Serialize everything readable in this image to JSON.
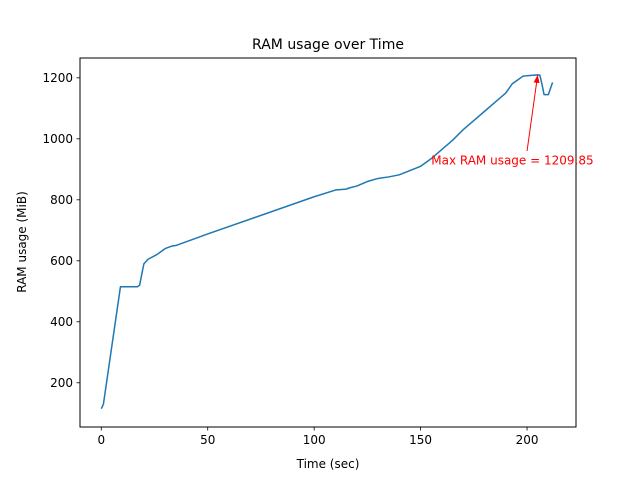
{
  "chart_data": {
    "type": "line",
    "title": "RAM usage over Time",
    "xlabel": "Time (sec)",
    "ylabel": "RAM usage (MiB)",
    "xlim": [
      -10,
      223
    ],
    "ylim": [
      55,
      1265
    ],
    "xticks": [
      0,
      50,
      100,
      150,
      200
    ],
    "yticks": [
      200,
      400,
      600,
      800,
      1000,
      1200
    ],
    "grid": false,
    "series": [
      {
        "color": "#1f77b4",
        "x": [
          0,
          1,
          9,
          12,
          17,
          18,
          20,
          22,
          26,
          30,
          33,
          35,
          50,
          100,
          110,
          115,
          117,
          120,
          125,
          130,
          135,
          140,
          150,
          155,
          160,
          165,
          170,
          175,
          180,
          185,
          190,
          193,
          195,
          198,
          200,
          202,
          205,
          206,
          207,
          208,
          209,
          210,
          212
        ],
        "y": [
          115,
          130,
          515,
          515,
          515,
          520,
          590,
          605,
          620,
          640,
          648,
          650,
          688,
          810,
          832,
          835,
          840,
          845,
          860,
          870,
          875,
          882,
          910,
          935,
          965,
          995,
          1030,
          1060,
          1090,
          1120,
          1150,
          1180,
          1190,
          1205,
          1207,
          1208,
          1209.85,
          1209,
          1180,
          1145,
          1145,
          1145,
          1185
        ]
      }
    ],
    "annotations": [
      {
        "text": "Max RAM usage = 1209.85",
        "xy": [
          205,
          1209.85
        ],
        "xytext": [
          155,
          915
        ],
        "arrow_from": [
          200,
          960
        ],
        "color": "#ff0000"
      }
    ]
  }
}
